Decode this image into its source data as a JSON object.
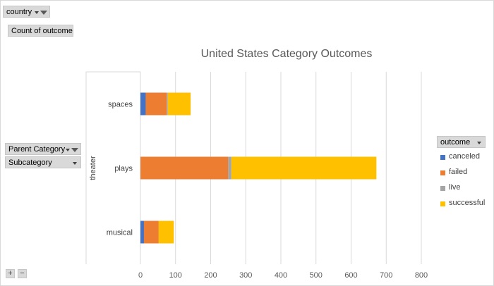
{
  "pivot": {
    "filter_field": "country",
    "values_field": "Count of outcome",
    "row_fields": [
      "Parent Category",
      "Subcategory"
    ],
    "legend_field": "outcome",
    "expand_label": "+",
    "collapse_label": "−"
  },
  "icons": {
    "filter": "funnel-icon",
    "dropdown": "dropdown-arrow-icon"
  },
  "chart_data": {
    "type": "bar",
    "orientation": "horizontal",
    "stacked": true,
    "title": "United States Category Outcomes",
    "group_label": "theater",
    "categories": [
      "spaces",
      "plays",
      "musical"
    ],
    "series": [
      {
        "name": "canceled",
        "color": "#4472c4",
        "values": [
          15,
          0,
          10
        ]
      },
      {
        "name": "failed",
        "color": "#ed7d31",
        "values": [
          60,
          250,
          42
        ]
      },
      {
        "name": "live",
        "color": "#a5a5a5",
        "values": [
          3,
          9,
          0
        ]
      },
      {
        "name": "successful",
        "color": "#ffc000",
        "values": [
          65,
          413,
          43
        ]
      }
    ],
    "xlim": [
      0,
      800
    ],
    "xticks": [
      0,
      100,
      200,
      300,
      400,
      500,
      600,
      700,
      800
    ],
    "grid": true,
    "legend": "right"
  }
}
